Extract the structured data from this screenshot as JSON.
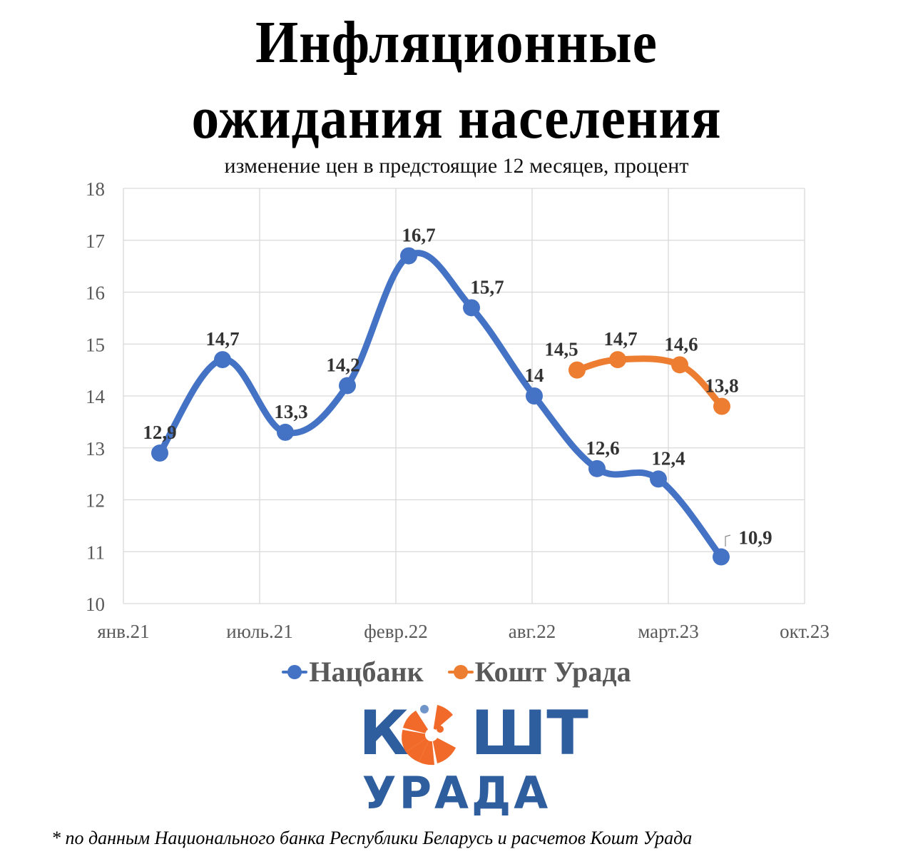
{
  "title": {
    "line1": "Инфляционные",
    "line2": "ожидания населения",
    "subtitle": "изменение цен в предстоящие 12 месяцев, процент"
  },
  "colors": {
    "natsbank": "#4472C4",
    "kosht_urada": "#ED7D31",
    "grid": "#D9D9D9",
    "axis_text": "#595959",
    "label_text": "#333333",
    "logo_blue": "#2F5E9E",
    "logo_orange": "#F26A2A"
  },
  "chart_data": {
    "type": "line",
    "title": "Инфляционные ожидания населения",
    "subtitle": "изменение цен в предстоящие 12 месяцев, процент",
    "xlabel": "",
    "ylabel": "",
    "ylim": [
      10,
      18
    ],
    "yticks": [
      "10",
      "11",
      "12",
      "13",
      "14",
      "15",
      "16",
      "17",
      "18"
    ],
    "xticks": [
      "янв.21",
      "июль.21",
      "февр.22",
      "авг.22",
      "март.23",
      "окт.23"
    ],
    "grid": true,
    "smoothed": true,
    "legend_position": "bottom",
    "series": [
      {
        "name": "Нацбанк",
        "color": "#4472C4",
        "points": [
          {
            "x": "фев.21",
            "y": 12.9,
            "label": "12,9"
          },
          {
            "x": "май.21",
            "y": 14.7,
            "label": "14,7"
          },
          {
            "x": "авг.21",
            "y": 13.3,
            "label": "13,3"
          },
          {
            "x": "нояб.21",
            "y": 14.2,
            "label": "14,2"
          },
          {
            "x": "февр.22",
            "y": 16.7,
            "label": "16,7"
          },
          {
            "x": "май.22",
            "y": 15.7,
            "label": "15,7"
          },
          {
            "x": "авг.22",
            "y": 14.0,
            "label": "14"
          },
          {
            "x": "нояб.22",
            "y": 12.6,
            "label": "12,6"
          },
          {
            "x": "февр.23",
            "y": 12.4,
            "label": "12,4"
          },
          {
            "x": "май.23",
            "y": 10.9,
            "label": "10,9"
          }
        ]
      },
      {
        "name": "Кошт Урада",
        "color": "#ED7D31",
        "points": [
          {
            "x": "окт.22",
            "y": 14.5,
            "label": "14,5"
          },
          {
            "x": "дек.22",
            "y": 14.7,
            "label": "14,7"
          },
          {
            "x": "март.23",
            "y": 14.6,
            "label": "14,6"
          },
          {
            "x": "май.23",
            "y": 13.8,
            "label": "13,8"
          }
        ]
      }
    ]
  },
  "legend": {
    "items": [
      {
        "label": "Нацбанк",
        "color": "#4472C4"
      },
      {
        "label": "Кошт Урада",
        "color": "#ED7D31"
      }
    ]
  },
  "logo": {
    "top_text_left": "К",
    "top_text_right": "ШТ",
    "bottom_text": "УРАДА"
  },
  "footnote": "* по данным Национального банка Республики Беларусь и расчетов Кошт Урада"
}
